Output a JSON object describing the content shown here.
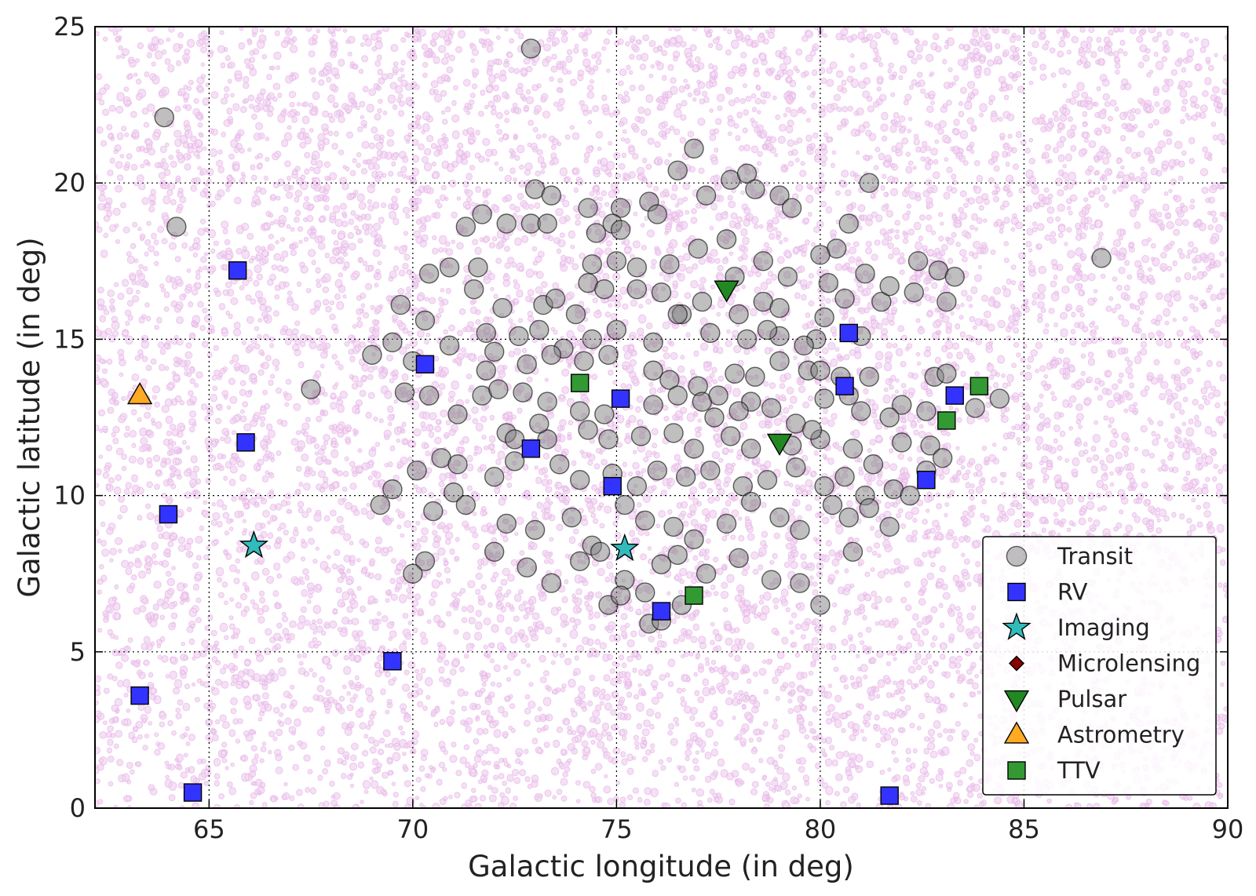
{
  "chart_data": {
    "type": "scatter",
    "xlabel": "Galactic longitude (in deg)",
    "ylabel": "Galactic latitude (in deg)",
    "xlim": [
      62.2,
      90
    ],
    "ylim": [
      0,
      25
    ],
    "xticks": [
      65,
      70,
      75,
      80,
      85,
      90
    ],
    "yticks": [
      0,
      5,
      10,
      15,
      20,
      25
    ],
    "grid": true,
    "legend_position": "bottom-right",
    "background_field": {
      "description": "stellar field",
      "color": "#c040c0"
    },
    "series": [
      {
        "name": "Transit",
        "marker": "circle",
        "color": "#808080",
        "points": [
          [
            72.9,
            24.3
          ],
          [
            63.9,
            22.1
          ],
          [
            64.2,
            18.6
          ],
          [
            67.5,
            13.4
          ],
          [
            86.9,
            17.6
          ],
          [
            81.2,
            20.0
          ],
          [
            76.9,
            21.1
          ],
          [
            76.5,
            20.4
          ],
          [
            77.8,
            20.1
          ],
          [
            78.2,
            20.3
          ],
          [
            78.4,
            19.8
          ],
          [
            77.2,
            19.6
          ],
          [
            73.0,
            19.8
          ],
          [
            73.4,
            19.6
          ],
          [
            74.3,
            19.2
          ],
          [
            75.1,
            19.2
          ],
          [
            75.8,
            19.4
          ],
          [
            76.0,
            19.0
          ],
          [
            71.7,
            19.0
          ],
          [
            71.3,
            18.6
          ],
          [
            72.3,
            18.7
          ],
          [
            72.9,
            18.7
          ],
          [
            73.3,
            18.7
          ],
          [
            74.5,
            18.4
          ],
          [
            74.9,
            18.7
          ],
          [
            75.1,
            18.5
          ],
          [
            77.0,
            17.9
          ],
          [
            77.7,
            18.2
          ],
          [
            79.0,
            19.6
          ],
          [
            79.3,
            19.2
          ],
          [
            80.7,
            18.7
          ],
          [
            80.4,
            17.9
          ],
          [
            80.0,
            17.7
          ],
          [
            81.1,
            17.1
          ],
          [
            82.4,
            17.5
          ],
          [
            82.9,
            17.2
          ],
          [
            83.3,
            17.0
          ],
          [
            70.4,
            17.1
          ],
          [
            70.9,
            17.3
          ],
          [
            71.6,
            17.3
          ],
          [
            74.4,
            17.4
          ],
          [
            75.0,
            17.5
          ],
          [
            75.5,
            17.3
          ],
          [
            76.3,
            17.4
          ],
          [
            77.9,
            17.0
          ],
          [
            78.6,
            17.5
          ],
          [
            79.2,
            17.0
          ],
          [
            80.2,
            16.8
          ],
          [
            81.5,
            16.2
          ],
          [
            81.7,
            16.7
          ],
          [
            82.3,
            16.5
          ],
          [
            83.1,
            16.2
          ],
          [
            69.7,
            16.1
          ],
          [
            71.5,
            16.6
          ],
          [
            72.2,
            16.0
          ],
          [
            73.2,
            16.1
          ],
          [
            74.3,
            16.8
          ],
          [
            74.7,
            16.6
          ],
          [
            75.5,
            16.6
          ],
          [
            76.6,
            15.8
          ],
          [
            77.1,
            16.2
          ],
          [
            78.0,
            15.8
          ],
          [
            78.6,
            16.2
          ],
          [
            79.0,
            16.0
          ],
          [
            80.1,
            15.7
          ],
          [
            80.6,
            16.3
          ],
          [
            70.3,
            15.6
          ],
          [
            71.8,
            15.2
          ],
          [
            72.6,
            15.1
          ],
          [
            73.1,
            15.3
          ],
          [
            73.7,
            14.7
          ],
          [
            74.4,
            15.0
          ],
          [
            75.0,
            15.3
          ],
          [
            75.9,
            14.9
          ],
          [
            76.5,
            15.8
          ],
          [
            77.3,
            15.2
          ],
          [
            78.2,
            15.0
          ],
          [
            79.0,
            15.1
          ],
          [
            79.9,
            15.0
          ],
          [
            81.0,
            15.1
          ],
          [
            69.0,
            14.5
          ],
          [
            69.5,
            14.9
          ],
          [
            70.0,
            14.3
          ],
          [
            70.9,
            14.8
          ],
          [
            72.0,
            14.6
          ],
          [
            72.8,
            14.2
          ],
          [
            73.4,
            14.5
          ],
          [
            74.2,
            14.3
          ],
          [
            74.8,
            14.5
          ],
          [
            75.9,
            14.0
          ],
          [
            76.3,
            13.7
          ],
          [
            77.0,
            13.5
          ],
          [
            77.9,
            13.9
          ],
          [
            78.4,
            13.8
          ],
          [
            79.0,
            14.3
          ],
          [
            79.7,
            14.0
          ],
          [
            80.0,
            14.0
          ],
          [
            80.5,
            13.8
          ],
          [
            81.2,
            13.8
          ],
          [
            82.8,
            13.8
          ],
          [
            83.1,
            13.9
          ],
          [
            69.8,
            13.3
          ],
          [
            70.4,
            13.2
          ],
          [
            71.7,
            13.2
          ],
          [
            72.1,
            13.4
          ],
          [
            72.7,
            13.3
          ],
          [
            73.3,
            13.0
          ],
          [
            74.1,
            12.7
          ],
          [
            74.7,
            12.6
          ],
          [
            75.9,
            12.9
          ],
          [
            76.5,
            13.2
          ],
          [
            77.1,
            13.0
          ],
          [
            77.5,
            13.2
          ],
          [
            78.3,
            13.0
          ],
          [
            78.8,
            12.8
          ],
          [
            79.4,
            12.3
          ],
          [
            80.1,
            13.1
          ],
          [
            80.7,
            13.2
          ],
          [
            81.0,
            12.7
          ],
          [
            82.0,
            12.9
          ],
          [
            82.6,
            12.7
          ],
          [
            83.8,
            12.8
          ],
          [
            84.4,
            13.1
          ],
          [
            71.1,
            12.6
          ],
          [
            72.3,
            12.0
          ],
          [
            73.3,
            11.8
          ],
          [
            74.3,
            12.1
          ],
          [
            74.8,
            11.8
          ],
          [
            75.6,
            11.9
          ],
          [
            76.4,
            12.0
          ],
          [
            76.9,
            11.5
          ],
          [
            77.8,
            11.9
          ],
          [
            78.3,
            11.5
          ],
          [
            79.3,
            11.6
          ],
          [
            80.0,
            11.8
          ],
          [
            81.3,
            11.0
          ],
          [
            81.7,
            12.5
          ],
          [
            82.0,
            11.7
          ],
          [
            82.7,
            11.6
          ],
          [
            83.0,
            11.2
          ],
          [
            70.7,
            11.2
          ],
          [
            71.1,
            11.0
          ],
          [
            72.0,
            10.6
          ],
          [
            72.5,
            11.1
          ],
          [
            73.6,
            11.0
          ],
          [
            74.1,
            10.5
          ],
          [
            74.9,
            10.7
          ],
          [
            75.5,
            10.3
          ],
          [
            76.0,
            10.8
          ],
          [
            76.7,
            10.6
          ],
          [
            77.3,
            10.8
          ],
          [
            78.1,
            10.3
          ],
          [
            78.7,
            10.5
          ],
          [
            79.4,
            10.9
          ],
          [
            80.1,
            10.3
          ],
          [
            80.6,
            10.6
          ],
          [
            81.1,
            10.0
          ],
          [
            81.8,
            10.2
          ],
          [
            82.2,
            10.0
          ],
          [
            82.6,
            10.8
          ],
          [
            69.5,
            10.2
          ],
          [
            70.1,
            10.8
          ],
          [
            70.5,
            9.5
          ],
          [
            71.0,
            10.1
          ],
          [
            71.3,
            9.7
          ],
          [
            72.3,
            9.1
          ],
          [
            73.0,
            8.9
          ],
          [
            73.9,
            9.3
          ],
          [
            74.4,
            8.4
          ],
          [
            75.2,
            9.7
          ],
          [
            75.7,
            9.2
          ],
          [
            76.4,
            9.0
          ],
          [
            76.9,
            8.6
          ],
          [
            77.7,
            9.1
          ],
          [
            78.3,
            9.8
          ],
          [
            79.0,
            9.3
          ],
          [
            79.5,
            8.9
          ],
          [
            80.3,
            9.7
          ],
          [
            80.7,
            9.3
          ],
          [
            81.2,
            9.6
          ],
          [
            81.7,
            9.0
          ],
          [
            69.2,
            9.7
          ],
          [
            72.0,
            8.2
          ],
          [
            72.8,
            7.7
          ],
          [
            73.4,
            7.2
          ],
          [
            74.1,
            7.9
          ],
          [
            74.6,
            8.2
          ],
          [
            75.2,
            7.3
          ],
          [
            75.7,
            6.9
          ],
          [
            76.1,
            7.8
          ],
          [
            76.5,
            8.1
          ],
          [
            77.2,
            7.5
          ],
          [
            78.0,
            8.0
          ],
          [
            78.8,
            7.3
          ],
          [
            79.5,
            7.2
          ],
          [
            80.0,
            6.5
          ],
          [
            80.8,
            8.2
          ],
          [
            70.3,
            7.9
          ],
          [
            70.0,
            7.5
          ],
          [
            74.8,
            6.5
          ],
          [
            75.1,
            6.8
          ],
          [
            75.8,
            5.9
          ],
          [
            76.1,
            6.0
          ],
          [
            76.6,
            6.5
          ],
          [
            72.5,
            11.8
          ],
          [
            73.1,
            12.3
          ],
          [
            77.4,
            12.5
          ],
          [
            78.0,
            12.7
          ],
          [
            79.8,
            12.1
          ],
          [
            80.8,
            11.5
          ],
          [
            71.8,
            14.0
          ],
          [
            73.5,
            16.3
          ],
          [
            74.0,
            15.8
          ],
          [
            76.1,
            16.5
          ],
          [
            78.7,
            15.3
          ],
          [
            79.6,
            14.8
          ]
        ]
      },
      {
        "name": "RV",
        "marker": "square",
        "color": "#3333ff",
        "points": [
          [
            65.7,
            17.2
          ],
          [
            65.9,
            11.7
          ],
          [
            64.0,
            9.4
          ],
          [
            63.3,
            3.6
          ],
          [
            64.6,
            0.5
          ],
          [
            69.5,
            4.7
          ],
          [
            70.3,
            14.2
          ],
          [
            72.9,
            11.5
          ],
          [
            74.9,
            10.3
          ],
          [
            75.1,
            13.1
          ],
          [
            76.1,
            6.3
          ],
          [
            80.7,
            15.2
          ],
          [
            80.6,
            13.5
          ],
          [
            83.3,
            13.2
          ],
          [
            82.6,
            10.5
          ],
          [
            81.7,
            0.4
          ]
        ]
      },
      {
        "name": "Imaging",
        "marker": "star",
        "color": "#33bbbb",
        "points": [
          [
            66.1,
            8.4
          ],
          [
            75.2,
            8.3
          ]
        ]
      },
      {
        "name": "Microlensing",
        "marker": "diamond",
        "color": "#8b0000",
        "points": []
      },
      {
        "name": "Pulsar",
        "marker": "triangle-down",
        "color": "#228822",
        "points": [
          [
            77.7,
            16.6
          ],
          [
            79.0,
            11.7
          ]
        ]
      },
      {
        "name": "Astrometry",
        "marker": "triangle-up",
        "color": "#ffaa22",
        "points": [
          [
            63.3,
            13.2
          ]
        ]
      },
      {
        "name": "TTV",
        "marker": "square",
        "color": "#339933",
        "points": [
          [
            74.1,
            13.6
          ],
          [
            76.9,
            6.8
          ],
          [
            83.1,
            12.4
          ],
          [
            83.9,
            13.5
          ]
        ]
      }
    ]
  }
}
